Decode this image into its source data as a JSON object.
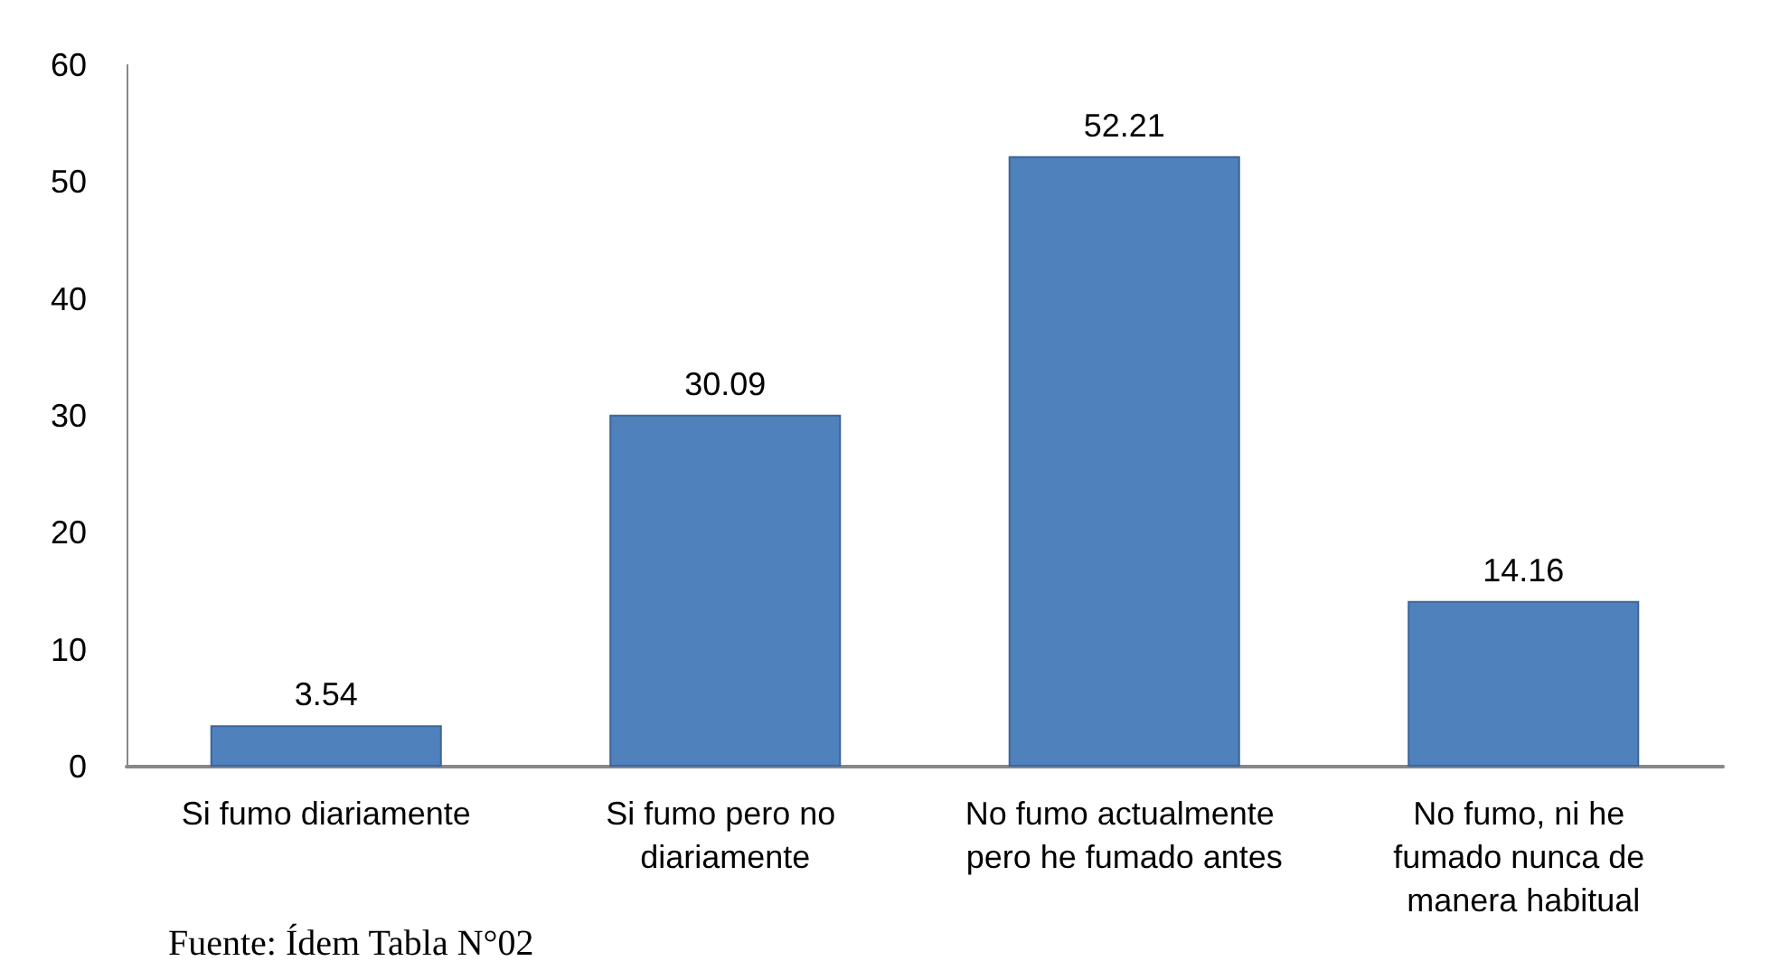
{
  "chart_data": {
    "type": "bar",
    "categories": [
      "Si fumo diariamente",
      "Si fumo pero no diariamente",
      "No fumo actualmente pero he fumado antes",
      "No fumo, ni he fumado nunca de manera habitual"
    ],
    "values": [
      3.54,
      30.09,
      52.21,
      14.16
    ],
    "color": "#4f81bd",
    "ylim": [
      0,
      60
    ],
    "yticks": [
      0,
      10,
      20,
      30,
      40,
      50,
      60
    ],
    "grid": false,
    "data_labels": true,
    "annotations": [
      "Fuente: Ídem Tabla N°02"
    ]
  }
}
